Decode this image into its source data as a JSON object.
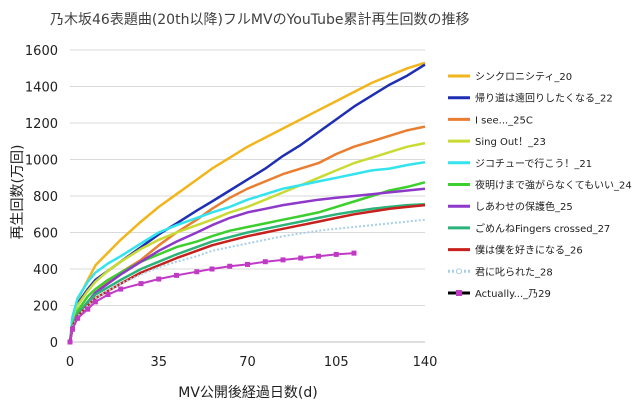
{
  "chart_data": {
    "type": "line",
    "title": "乃木坂46表題曲(20th以降)フルMVのYouTube累計再生回数の推移",
    "xlabel": "MV公開後経過日数(d)",
    "ylabel": "再生回数(万回)",
    "xlim": [
      0,
      140
    ],
    "ylim": [
      0,
      1600
    ],
    "xticks": [
      0,
      35,
      70,
      105,
      140
    ],
    "yticks": [
      0,
      200,
      400,
      600,
      800,
      1000,
      1200,
      1400,
      1600
    ],
    "grid": "horizontal",
    "legend_position": "right",
    "series": [
      {
        "name": "シンクロニシティ_20",
        "color": "#F2B51B",
        "style": "solid",
        "x": [
          0,
          1,
          3,
          7,
          10,
          15,
          20,
          28,
          35,
          42,
          50,
          56,
          63,
          70,
          77,
          84,
          91,
          98,
          105,
          112,
          119,
          126,
          133,
          140
        ],
        "y": [
          0,
          130,
          230,
          340,
          420,
          490,
          560,
          660,
          740,
          810,
          890,
          950,
          1010,
          1070,
          1120,
          1170,
          1220,
          1270,
          1320,
          1370,
          1420,
          1460,
          1500,
          1530
        ]
      },
      {
        "name": "帰り道は遠回りしたくなる_22",
        "color": "#1F2FB4",
        "style": "solid",
        "x": [
          0,
          1,
          3,
          7,
          10,
          15,
          20,
          28,
          35,
          42,
          50,
          56,
          63,
          70,
          77,
          84,
          91,
          98,
          105,
          112,
          119,
          126,
          133,
          140
        ],
        "y": [
          0,
          120,
          210,
          290,
          340,
          390,
          440,
          520,
          590,
          650,
          720,
          770,
          830,
          890,
          950,
          1020,
          1080,
          1150,
          1220,
          1290,
          1350,
          1410,
          1460,
          1520
        ]
      },
      {
        "name": "I see..._25C",
        "color": "#E97E31",
        "style": "solid",
        "x": [
          0,
          1,
          3,
          7,
          10,
          15,
          20,
          28,
          35,
          42,
          50,
          56,
          63,
          70,
          77,
          84,
          91,
          98,
          105,
          112,
          119,
          126,
          133,
          140
        ],
        "y": [
          0,
          80,
          150,
          220,
          270,
          330,
          380,
          450,
          530,
          600,
          670,
          730,
          790,
          840,
          880,
          920,
          950,
          980,
          1030,
          1070,
          1100,
          1130,
          1160,
          1180
        ]
      },
      {
        "name": "Sing Out！_23",
        "color": "#C9DB33",
        "style": "solid",
        "x": [
          0,
          1,
          3,
          7,
          10,
          15,
          20,
          28,
          35,
          42,
          50,
          56,
          63,
          70,
          77,
          84,
          91,
          98,
          105,
          112,
          119,
          126,
          133,
          140
        ],
        "y": [
          0,
          110,
          200,
          280,
          330,
          390,
          440,
          510,
          560,
          600,
          640,
          670,
          710,
          740,
          780,
          820,
          860,
          900,
          940,
          980,
          1010,
          1040,
          1070,
          1090
        ]
      },
      {
        "name": "ジコチューで行こう！_21",
        "color": "#33E3EE",
        "style": "solid",
        "x": [
          0,
          1,
          3,
          7,
          10,
          15,
          20,
          28,
          35,
          42,
          50,
          56,
          63,
          70,
          77,
          84,
          91,
          98,
          105,
          112,
          119,
          126,
          133,
          140
        ],
        "y": [
          0,
          140,
          240,
          330,
          380,
          430,
          470,
          540,
          600,
          640,
          680,
          710,
          740,
          780,
          810,
          840,
          860,
          880,
          900,
          920,
          940,
          950,
          970,
          985
        ]
      },
      {
        "name": "夜明けまで強がらなくてもいい_24",
        "color": "#3CCF2D",
        "style": "solid",
        "x": [
          0,
          1,
          3,
          7,
          10,
          15,
          20,
          28,
          35,
          42,
          50,
          56,
          63,
          70,
          77,
          84,
          91,
          98,
          105,
          112,
          119,
          126,
          133,
          140
        ],
        "y": [
          0,
          90,
          170,
          250,
          290,
          340,
          380,
          440,
          480,
          520,
          550,
          580,
          610,
          630,
          650,
          670,
          690,
          710,
          740,
          770,
          800,
          830,
          850,
          875
        ]
      },
      {
        "name": "しあわせの保護色_25",
        "color": "#8E39C9",
        "style": "solid",
        "x": [
          0,
          1,
          3,
          7,
          10,
          15,
          20,
          28,
          35,
          42,
          50,
          56,
          63,
          70,
          77,
          84,
          91,
          98,
          105,
          112,
          119,
          126,
          133,
          140
        ],
        "y": [
          0,
          80,
          150,
          220,
          270,
          320,
          370,
          440,
          500,
          550,
          600,
          640,
          680,
          710,
          730,
          750,
          765,
          780,
          790,
          800,
          810,
          820,
          830,
          840
        ]
      },
      {
        "name": "ごめんねFingers crossed_27",
        "color": "#2BB37A",
        "style": "solid",
        "x": [
          0,
          1,
          3,
          7,
          10,
          15,
          20,
          28,
          35,
          42,
          50,
          56,
          63,
          70,
          77,
          84,
          91,
          98,
          105,
          112,
          119,
          126,
          133,
          140
        ],
        "y": [
          0,
          80,
          150,
          220,
          260,
          300,
          340,
          400,
          440,
          480,
          520,
          550,
          575,
          600,
          620,
          640,
          660,
          680,
          700,
          715,
          730,
          740,
          750,
          755
        ]
      },
      {
        "name": "僕は僕を好きになる_26",
        "color": "#C8201C",
        "style": "solid",
        "x": [
          0,
          1,
          3,
          7,
          10,
          15,
          20,
          28,
          35,
          42,
          50,
          56,
          63,
          70,
          77,
          84,
          91,
          98,
          105,
          112,
          119,
          126,
          133,
          140
        ],
        "y": [
          0,
          80,
          140,
          200,
          240,
          280,
          320,
          380,
          420,
          460,
          500,
          530,
          555,
          580,
          600,
          620,
          640,
          660,
          680,
          700,
          715,
          730,
          740,
          750
        ]
      },
      {
        "name": "君に叱られた_28",
        "color": "#A8CEE8",
        "style": "dotted",
        "x": [
          0,
          1,
          3,
          7,
          10,
          15,
          20,
          28,
          35,
          42,
          50,
          56,
          63,
          70,
          77,
          84,
          91,
          98,
          105,
          112,
          119,
          126,
          133,
          140
        ],
        "y": [
          0,
          80,
          140,
          200,
          240,
          280,
          320,
          370,
          410,
          440,
          470,
          500,
          520,
          540,
          560,
          580,
          595,
          610,
          620,
          630,
          640,
          650,
          660,
          670
        ]
      },
      {
        "name": "Actually..._乃29",
        "color": "#C03AC6",
        "style": "markers",
        "x": [
          0,
          1,
          3,
          7,
          10,
          15,
          20,
          28,
          35,
          42,
          50,
          56,
          63,
          70,
          77,
          84,
          91,
          98,
          105,
          112
        ],
        "y": [
          0,
          70,
          130,
          180,
          220,
          260,
          290,
          320,
          345,
          365,
          385,
          400,
          415,
          425,
          440,
          450,
          460,
          470,
          480,
          487
        ]
      }
    ]
  }
}
